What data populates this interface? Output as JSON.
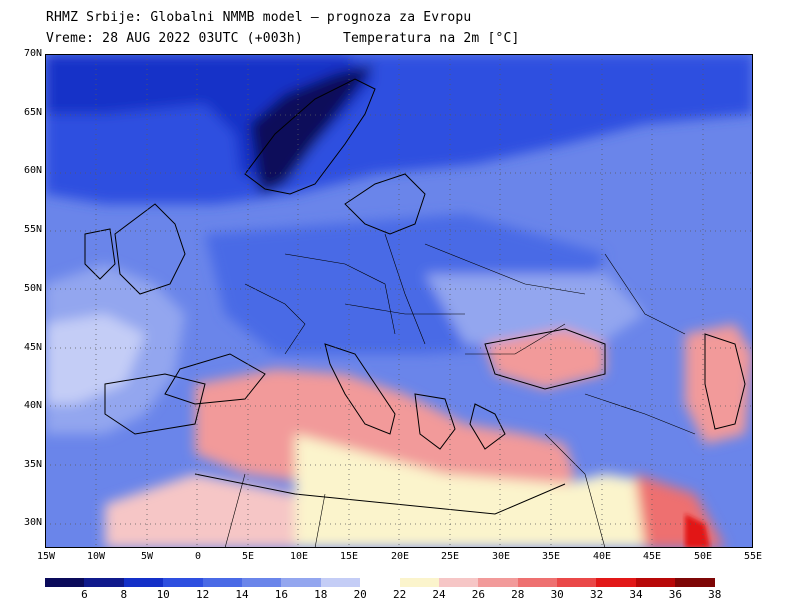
{
  "header": {
    "line1": "RHMZ Srbije: Globalni NMMB model — prognoza za Evropu",
    "line2": "Vreme: 28 AUG 2022 03UTC (+003h)     Temperatura na 2m [°C]"
  },
  "axes": {
    "lat_labels": [
      "70N",
      "65N",
      "60N",
      "55N",
      "50N",
      "45N",
      "40N",
      "35N",
      "30N"
    ],
    "lon_labels": [
      "15W",
      "10W",
      "5W",
      "0",
      "5E",
      "10E",
      "15E",
      "20E",
      "25E",
      "30E",
      "35E",
      "40E",
      "45E",
      "50E",
      "55E"
    ]
  },
  "legend": {
    "labels": [
      "6",
      "8",
      "10",
      "12",
      "14",
      "16",
      "18",
      "20",
      "22",
      "24",
      "26",
      "28",
      "30",
      "32",
      "34",
      "36",
      "38"
    ],
    "colors": [
      "#0a0a5a",
      "#101a8c",
      "#1430c8",
      "#2e4fe0",
      "#4a6ae6",
      "#6a85ea",
      "#93a6ef",
      "#c4cdf6",
      "#ffffff",
      "#fbf4cc",
      "#f6c6c6",
      "#f29a9a",
      "#ee7070",
      "#ea4848",
      "#e21818",
      "#b80808",
      "#7e0606"
    ]
  },
  "map": {
    "ocean_color": "#6a85ea",
    "north_color": "#2e4fe0",
    "arctic_color": "#1430c8",
    "warm_color": "#f29a9a",
    "hot_color": "#f6c6c6",
    "desert_color": "#fbf4cc",
    "grid_style": "dotted"
  }
}
